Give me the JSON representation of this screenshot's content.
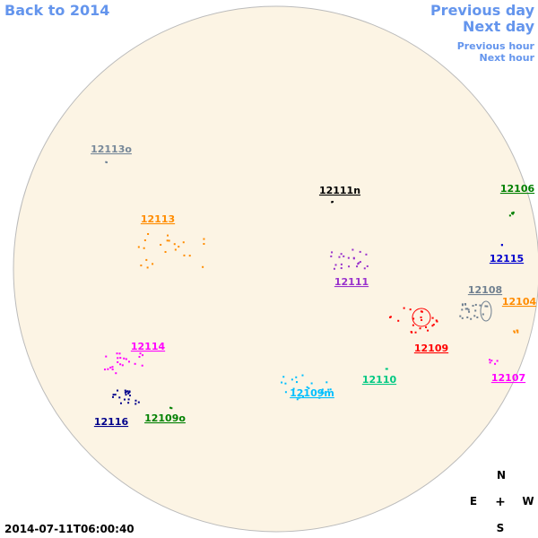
{
  "navigation": {
    "back": "Back to 2014",
    "previous_day": "Previous day",
    "next_day": "Next day",
    "previous_hour": "Previous hour",
    "next_hour": "Next hour"
  },
  "regions": [
    {
      "label": "12113o",
      "color": "#778899"
    },
    {
      "label": "12111n",
      "color": "#000000"
    },
    {
      "label": "12106",
      "color": "#008000"
    },
    {
      "label": "12113",
      "color": "#ff8c00"
    },
    {
      "label": "12115",
      "color": "#0000cd"
    },
    {
      "label": "12111",
      "color": "#9932cc"
    },
    {
      "label": "12108",
      "color": "#708090"
    },
    {
      "label": "12104",
      "color": "#ff8c00"
    },
    {
      "label": "12109",
      "color": "#ff0000"
    },
    {
      "label": "12114",
      "color": "#ff00ff"
    },
    {
      "label": "12110",
      "color": "#00c882"
    },
    {
      "label": "12107",
      "color": "#ff00ff"
    },
    {
      "label": "12109m",
      "color": "#00bfff"
    },
    {
      "label": "12116",
      "color": "#00008b"
    },
    {
      "label": "12109o",
      "color": "#008000"
    }
  ],
  "compass": {
    "north": "N",
    "east": "E",
    "center": "+",
    "west": "W",
    "south": "S"
  },
  "timestamp": "2014-07-11T06:00:40"
}
